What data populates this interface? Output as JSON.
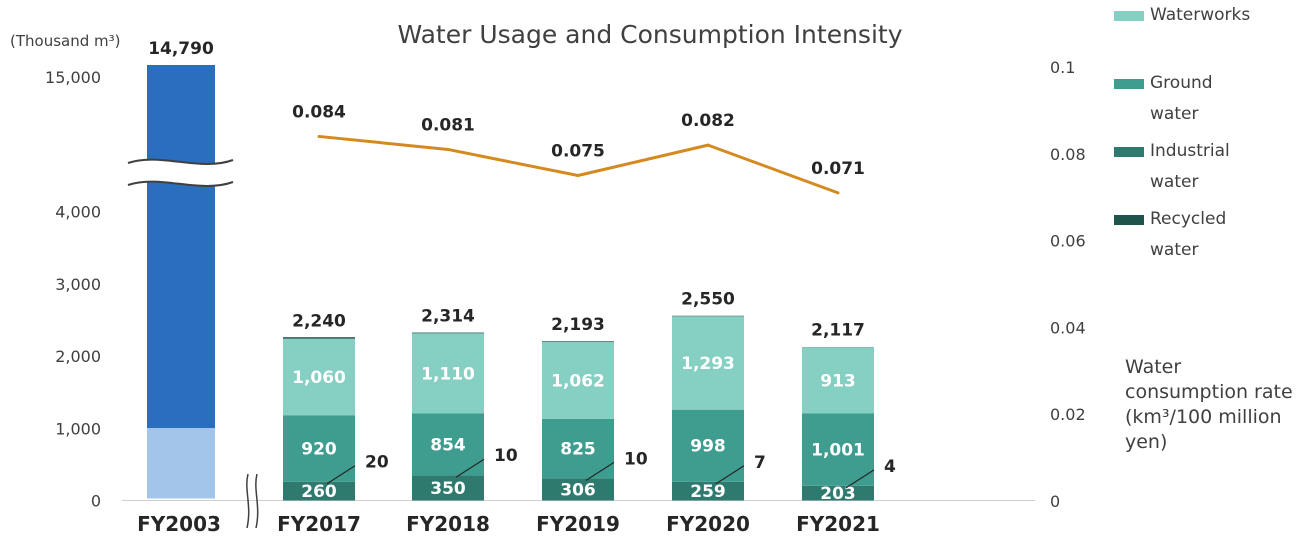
{
  "chart_data": {
    "type": "bar",
    "title": "Water Usage and Consumption Intensity",
    "y_unit_label": "(Thousand m³)",
    "y2_label": "Water consumption rate (km³/100 million yen)",
    "y2_label_lines": [
      "Water",
      "consumption rate",
      "(km³/100 million",
      "yen)"
    ],
    "y_ticks": [
      "0",
      "1,000",
      "2,000",
      "3,000",
      "4,000",
      "15,000"
    ],
    "y2_ticks": [
      "0",
      "0.02",
      "0.04",
      "0.06",
      "0.08",
      "0.1"
    ],
    "y2_tick_values": [
      0,
      0.02,
      0.04,
      0.06,
      0.08,
      0.1
    ],
    "ylim": [
      0,
      15000
    ],
    "y2lim": [
      0,
      0.1
    ],
    "axis_break": "between 4,000 and 15,000",
    "fy2003": {
      "category": "FY2003",
      "total": 14790,
      "total_label": "14,790",
      "bottom_segment_value": 1000
    },
    "categories": [
      "FY2017",
      "FY2018",
      "FY2019",
      "FY2020",
      "FY2021"
    ],
    "series": [
      {
        "name": "Recycled water",
        "values": [
          20,
          10,
          10,
          7,
          4
        ],
        "labels": [
          "20",
          "10",
          "10",
          "7",
          "4"
        ],
        "color": "#1e5449"
      },
      {
        "name": "Industrial water",
        "values": [
          260,
          350,
          306,
          259,
          203
        ],
        "labels": [
          "260",
          "350",
          "306",
          "259",
          "203"
        ],
        "color": "#2f7a6f"
      },
      {
        "name": "Ground water",
        "values": [
          920,
          854,
          825,
          998,
          1001
        ],
        "labels": [
          "920",
          "854",
          "825",
          "998",
          "1,001"
        ],
        "color": "#3e9d8f"
      },
      {
        "name": "Waterworks",
        "values": [
          1060,
          1110,
          1062,
          1293,
          913
        ],
        "labels": [
          "1,060",
          "1,110",
          "1,062",
          "1,293",
          "913"
        ],
        "color": "#86cfc3"
      }
    ],
    "totals": [
      2240,
      2314,
      2193,
      2550,
      2117
    ],
    "total_labels": [
      "2,240",
      "2,314",
      "2,193",
      "2,550",
      "2,117"
    ],
    "line": {
      "name": "Water consumption rate",
      "values": [
        0.084,
        0.081,
        0.075,
        0.082,
        0.071
      ],
      "labels": [
        "0.084",
        "0.081",
        "0.075",
        "0.082",
        "0.071"
      ],
      "color": "#d58a1f"
    },
    "legend": [
      {
        "lines": [
          "Waterworks"
        ],
        "color": "#86cfc3"
      },
      {
        "lines": [
          "Ground",
          "water"
        ],
        "color": "#3e9d8f"
      },
      {
        "lines": [
          "Industrial",
          "water"
        ],
        "color": "#2f7a6f"
      },
      {
        "lines": [
          "Recycled",
          "water"
        ],
        "color": "#1e5449"
      }
    ],
    "legend_position": "right",
    "fy2003_colors": {
      "top": "#2a6ebf",
      "bottom": "#a3c5ea"
    },
    "grid": false
  }
}
